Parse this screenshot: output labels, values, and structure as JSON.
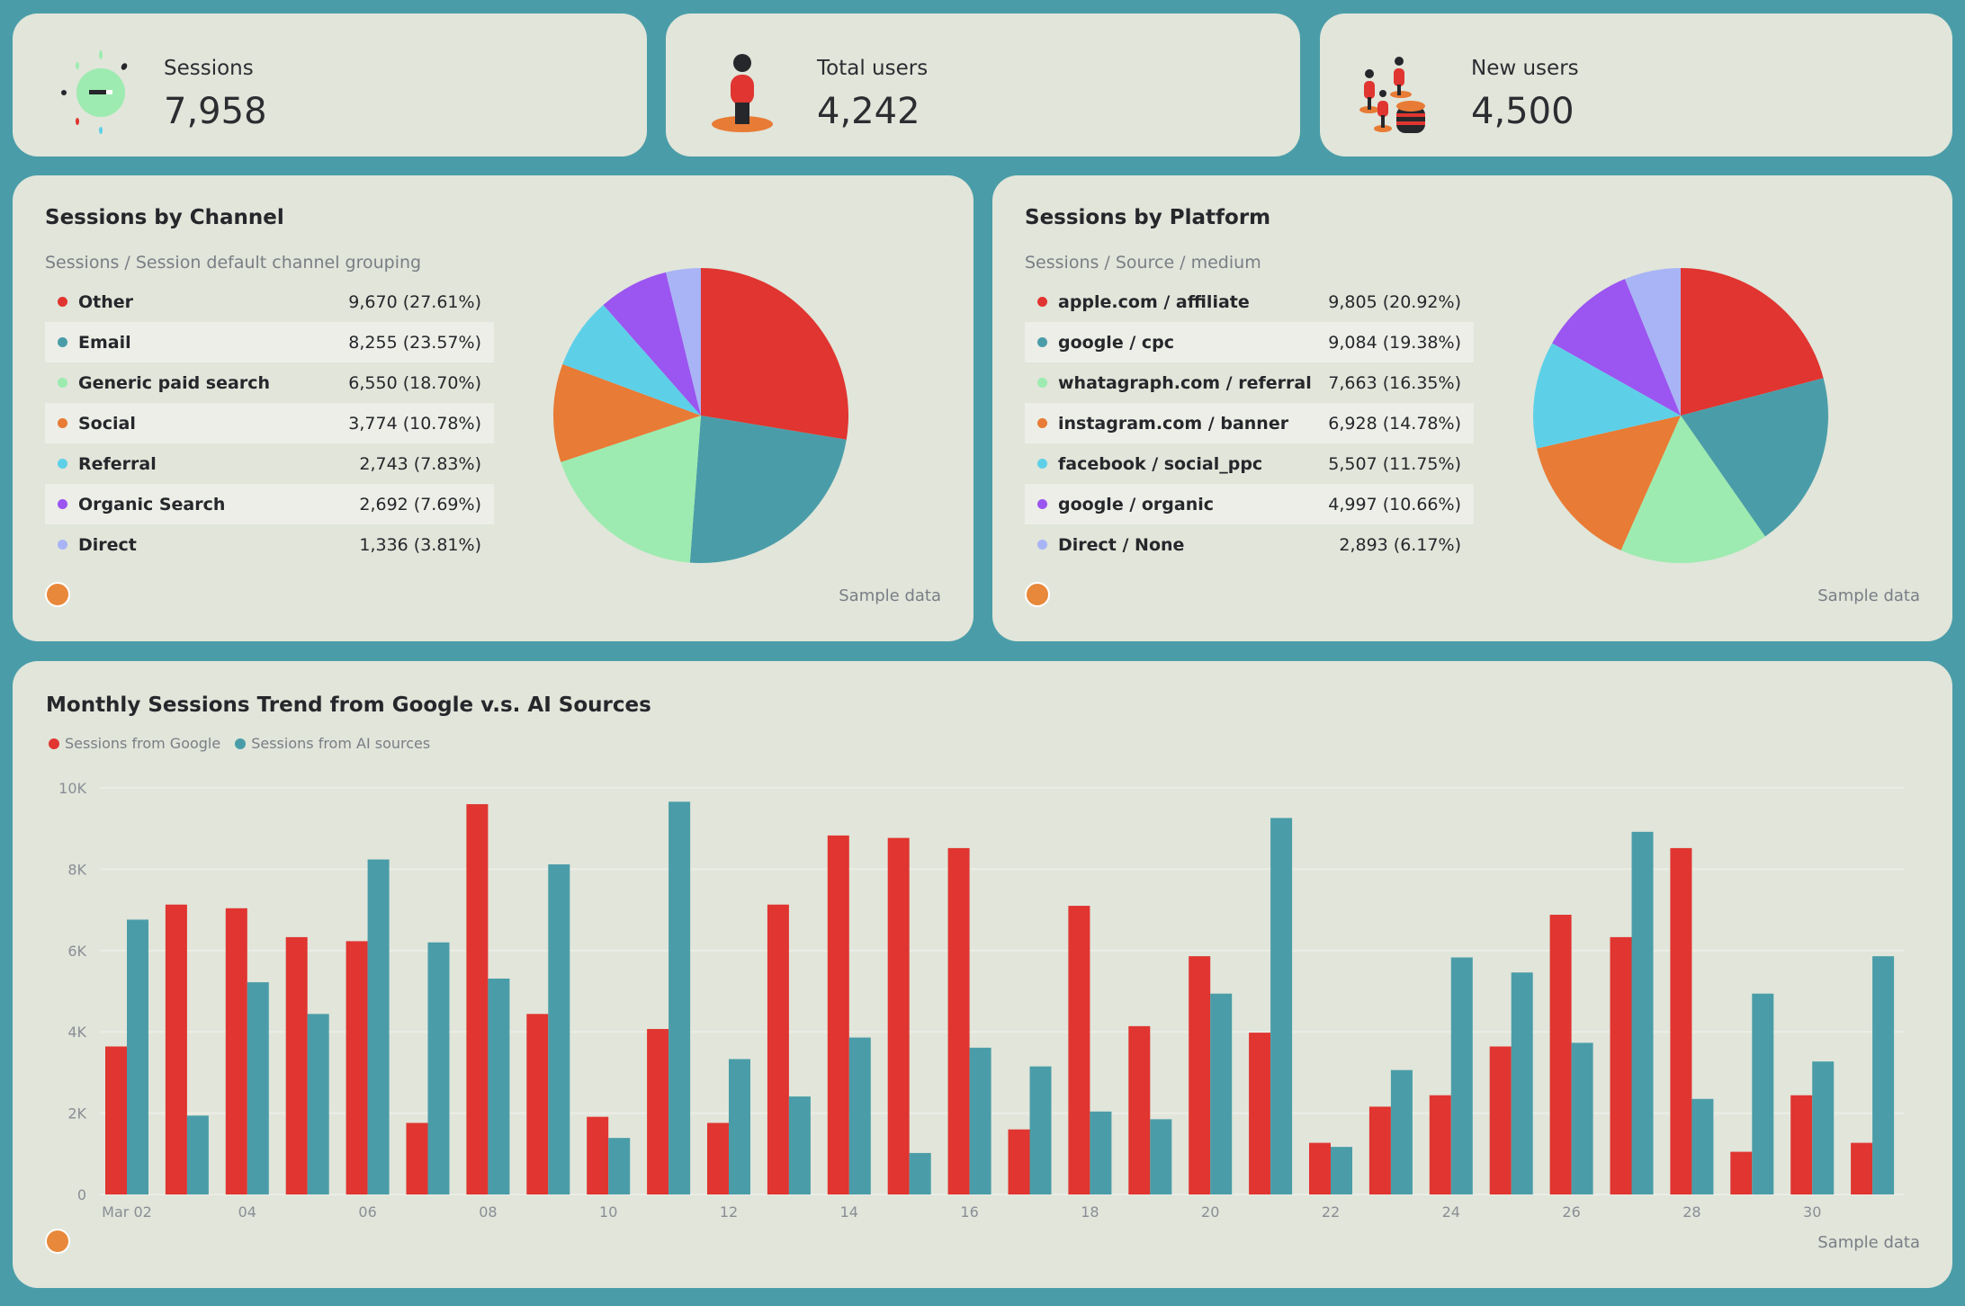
{
  "colors": {
    "red": "#e03530",
    "teal": "#4a9da8",
    "green": "#9debb0",
    "orange": "#e87b35",
    "cyan": "#5dd0e8",
    "purple": "#9b55f0",
    "lavender": "#a8b4f5"
  },
  "kpis": [
    {
      "label": "Sessions",
      "value": "7,958",
      "icon": "lightbulb-icon"
    },
    {
      "label": "Total users",
      "value": "4,242",
      "icon": "person-icon"
    },
    {
      "label": "New users",
      "value": "4,500",
      "icon": "people-coins-icon"
    }
  ],
  "channel": {
    "title": "Sessions by Channel",
    "subtitle": "Sessions / Session default channel grouping",
    "footer": "Sample data",
    "rows": [
      {
        "name": "Other",
        "value": "9,670 (27.61%)",
        "n": 9670,
        "color": "#e03530"
      },
      {
        "name": "Email",
        "value": "8,255 (23.57%)",
        "n": 8255,
        "color": "#4a9da8"
      },
      {
        "name": "Generic paid search",
        "value": "6,550 (18.70%)",
        "n": 6550,
        "color": "#9debb0"
      },
      {
        "name": "Social",
        "value": "3,774 (10.78%)",
        "n": 3774,
        "color": "#e87b35"
      },
      {
        "name": "Referral",
        "value": "2,743 (7.83%)",
        "n": 2743,
        "color": "#5dd0e8"
      },
      {
        "name": "Organic Search",
        "value": "2,692 (7.69%)",
        "n": 2692,
        "color": "#9b55f0"
      },
      {
        "name": "Direct",
        "value": "1,336 (3.81%)",
        "n": 1336,
        "color": "#a8b4f5"
      }
    ]
  },
  "platform": {
    "title": "Sessions by Platform",
    "subtitle": "Sessions / Source / medium",
    "footer": "Sample data",
    "rows": [
      {
        "name": "apple.com / affiliate",
        "value": "9,805 (20.92%)",
        "n": 9805,
        "color": "#e03530"
      },
      {
        "name": "google / cpc",
        "value": "9,084 (19.38%)",
        "n": 9084,
        "color": "#4a9da8"
      },
      {
        "name": "whatagraph.com / referral",
        "value": "7,663 (16.35%)",
        "n": 7663,
        "color": "#9debb0"
      },
      {
        "name": "instagram.com / banner",
        "value": "6,928 (14.78%)",
        "n": 6928,
        "color": "#e87b35"
      },
      {
        "name": "facebook / social_ppc",
        "value": "5,507 (11.75%)",
        "n": 5507,
        "color": "#5dd0e8"
      },
      {
        "name": "google / organic",
        "value": "4,997 (10.66%)",
        "n": 4997,
        "color": "#9b55f0"
      },
      {
        "name": "Direct / None",
        "value": "2,893 (6.17%)",
        "n": 2893,
        "color": "#a8b4f5"
      }
    ]
  },
  "trend": {
    "title": "Monthly Sessions Trend from Google v.s. AI Sources",
    "footer": "Sample data"
  },
  "chart_data": {
    "type": "bar",
    "title": "Monthly Sessions Trend from Google v.s. AI Sources",
    "ylim": [
      0,
      10000
    ],
    "yticks": [
      "0",
      "2K",
      "4K",
      "6K",
      "8K",
      "10K"
    ],
    "xticks": [
      "Mar 02",
      "04",
      "06",
      "08",
      "10",
      "12",
      "14",
      "16",
      "18",
      "20",
      "22",
      "24",
      "26",
      "28",
      "30"
    ],
    "categories": [
      "Mar 02",
      "Mar 03",
      "Mar 04",
      "Mar 05",
      "Mar 06",
      "Mar 07",
      "Mar 08",
      "Mar 09",
      "Mar 10",
      "Mar 11",
      "Mar 12",
      "Mar 13",
      "Mar 14",
      "Mar 15",
      "Mar 16",
      "Mar 17",
      "Mar 18",
      "Mar 19",
      "Mar 20",
      "Mar 21",
      "Mar 22",
      "Mar 23",
      "Mar 24",
      "Mar 25",
      "Mar 26",
      "Mar 27",
      "Mar 28",
      "Mar 29",
      "Mar 30",
      "Mar 31"
    ],
    "series": [
      {
        "name": "Sessions from Google",
        "color": "#e03530",
        "values": [
          3640,
          7130,
          7040,
          6330,
          6230,
          1760,
          9600,
          4440,
          1910,
          4070,
          1760,
          7130,
          8830,
          8770,
          8520,
          1600,
          7100,
          4140,
          5860,
          3980,
          1270,
          2160,
          2440,
          3640,
          6880,
          6330,
          8520,
          1050,
          2440,
          1270
        ]
      },
      {
        "name": "Sessions from AI sources",
        "color": "#4a9da8",
        "values": [
          6760,
          1940,
          5220,
          4440,
          8240,
          6200,
          5310,
          8120,
          1390,
          9660,
          3330,
          2410,
          3860,
          1020,
          3610,
          3150,
          2040,
          1850,
          4940,
          9260,
          1170,
          3060,
          5830,
          5460,
          3730,
          8920,
          2350,
          4940,
          3270,
          5860
        ]
      }
    ],
    "grid": true,
    "legend": "top-left"
  }
}
